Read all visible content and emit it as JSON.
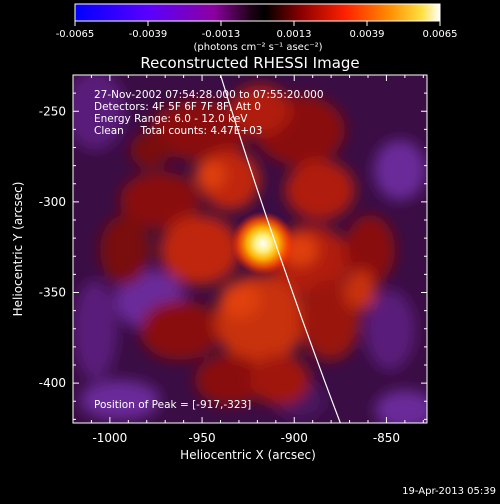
{
  "colorbar": {
    "tick_labels": [
      "-0.0065",
      "-0.0039",
      "-0.0013",
      "0.0013",
      "0.0039",
      "0.0065"
    ],
    "units_label": "(photons cm⁻² s⁻¹ asec⁻²)",
    "range": [
      -0.0065,
      0.0065
    ],
    "colormap": [
      "#0000ff",
      "#5a00ff",
      "#8c00c8",
      "#200018",
      "#000000",
      "#8c0000",
      "#ff0000",
      "#ff8c00",
      "#ffe040",
      "#ffffff"
    ]
  },
  "image": {
    "title": "Reconstructed RHESSI Image",
    "info_lines": [
      "27-Nov-2002 07:54:28.000 to 07:55:20.000",
      "Detectors: 4F 5F 6F 7F 8F, Att 0",
      "Energy Range: 6.0 - 12.0 keV",
      "Clean     Total counts: 4.47E+03"
    ],
    "peak_label": "Position of Peak = [-917,-323]",
    "peak": {
      "x": -917,
      "y": -323
    },
    "x_axis": {
      "label": "Heliocentric X (arcsec)",
      "range": [
        -1020,
        -828
      ],
      "ticks": [
        -1000,
        -950,
        -900,
        -850
      ],
      "tick_labels": [
        "-1000",
        "-950",
        "-900",
        "-850"
      ]
    },
    "y_axis": {
      "label": "Heliocentric Y (arcsec)",
      "range": [
        -422,
        -230
      ],
      "ticks": [
        -250,
        -300,
        -350,
        -400
      ],
      "tick_labels": [
        "-250",
        "-300",
        "-350",
        "-400"
      ]
    },
    "limb_curve": {
      "top_x": -940,
      "bottom_x": -875
    }
  },
  "footer": {
    "timestamp": "19-Apr-2013 05:39"
  }
}
